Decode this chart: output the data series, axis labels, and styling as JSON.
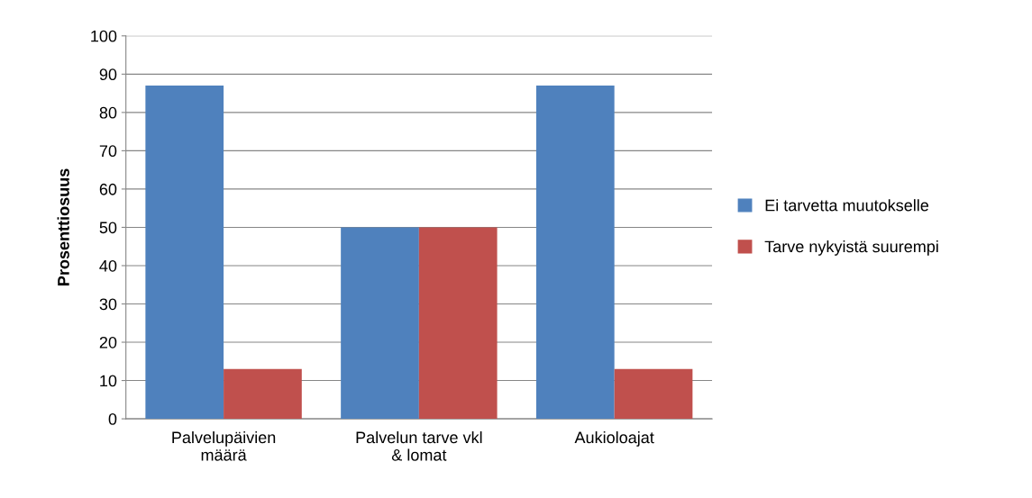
{
  "chart_data": {
    "type": "bar",
    "ylabel": "Prosenttiosuus",
    "categories": [
      "Palvelupäivien\nmäärä",
      "Palvelun tarve vkl\n& lomat",
      "Aukioloajat"
    ],
    "series": [
      {
        "name": "Ei tarvetta muutokselle",
        "color": "#4f81bd",
        "values": [
          87,
          50,
          87
        ]
      },
      {
        "name": "Tarve nykyistä suurempi",
        "color": "#c0504d",
        "values": [
          13,
          50,
          13
        ]
      }
    ],
    "ylim": [
      0,
      100
    ],
    "yticks": [
      0,
      10,
      20,
      30,
      40,
      50,
      60,
      70,
      80,
      90,
      100
    ],
    "grid": "y",
    "legend": "right"
  }
}
